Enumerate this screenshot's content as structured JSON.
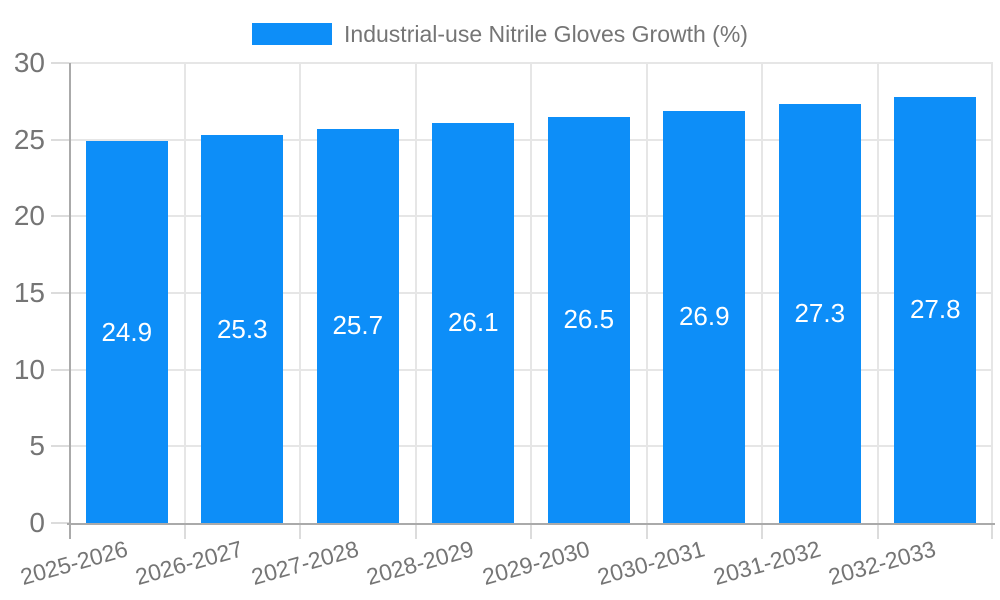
{
  "chart_data": {
    "type": "bar",
    "title": "Industrial-use Nitrile Gloves Growth (%)",
    "categories": [
      "2025-2026",
      "2026-2027",
      "2027-2028",
      "2028-2029",
      "2029-2030",
      "2030-2031",
      "2031-2032",
      "2032-2033"
    ],
    "values": [
      24.9,
      25.3,
      25.7,
      26.1,
      26.5,
      26.9,
      27.3,
      27.8
    ],
    "xlabel": "",
    "ylabel": "",
    "ylim": [
      0,
      30
    ],
    "yticks": [
      0,
      5,
      10,
      15,
      20,
      25,
      30
    ],
    "grid": true,
    "legend_position": "top",
    "colors": {
      "bar": "#0d8ef8",
      "value_label": "#ffffff",
      "axis_label": "#757575",
      "legend_label": "#757575",
      "gridline": "#e6e6e6",
      "tick": "#dcdcdc",
      "axis_line": "#aaaaaa",
      "background": "#ffffff"
    }
  }
}
